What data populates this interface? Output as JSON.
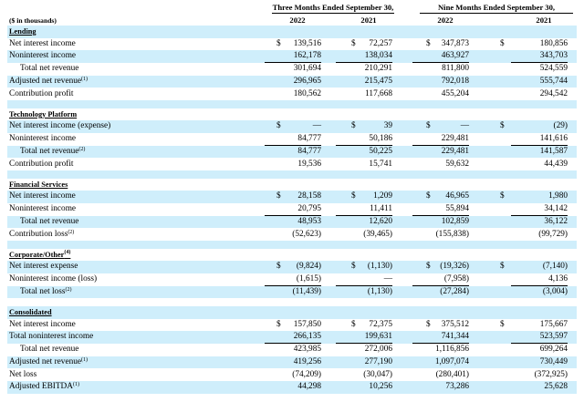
{
  "header": {
    "units": "($ in thousands)",
    "groups": [
      "Three Months Ended September 30,",
      "Nine Months Ended September 30,"
    ],
    "years": [
      "2022",
      "2021",
      "2022",
      "2021"
    ],
    "currency": "$"
  },
  "sections": [
    {
      "title": "Lending",
      "rows": [
        {
          "label": "Net interest income",
          "values": [
            "139,516",
            "72,257",
            "347,873",
            "180,856"
          ]
        },
        {
          "label": "Noninterest income",
          "values": [
            "162,178",
            "138,034",
            "463,927",
            "343,703"
          ]
        },
        {
          "label": "Total net revenue",
          "values": [
            "301,694",
            "210,291",
            "811,800",
            "524,559"
          ]
        },
        {
          "label": "Adjusted net revenue",
          "note": "(1)",
          "values": [
            "296,965",
            "215,475",
            "792,018",
            "555,744"
          ]
        },
        {
          "label": "Contribution profit",
          "values": [
            "180,562",
            "117,668",
            "455,204",
            "294,542"
          ]
        }
      ]
    },
    {
      "title": "Technology Platform",
      "rows": [
        {
          "label": "Net interest income (expense)",
          "values": [
            "—",
            "39",
            "—",
            "(29)"
          ]
        },
        {
          "label": "Noninterest income",
          "values": [
            "84,777",
            "50,186",
            "229,481",
            "141,616"
          ]
        },
        {
          "label": "Total net revenue",
          "note": "(2)",
          "values": [
            "84,777",
            "50,225",
            "229,481",
            "141,587"
          ]
        },
        {
          "label": "Contribution profit",
          "values": [
            "19,536",
            "15,741",
            "59,632",
            "44,439"
          ]
        }
      ]
    },
    {
      "title": "Financial Services",
      "rows": [
        {
          "label": "Net interest income",
          "values": [
            "28,158",
            "1,209",
            "46,965",
            "1,980"
          ]
        },
        {
          "label": "Noninterest income",
          "values": [
            "20,795",
            "11,411",
            "55,894",
            "34,142"
          ]
        },
        {
          "label": "Total net revenue",
          "values": [
            "48,953",
            "12,620",
            "102,859",
            "36,122"
          ]
        },
        {
          "label": "Contribution loss",
          "note": "(2)",
          "values": [
            "(52,623)",
            "(39,465)",
            "(155,838)",
            "(99,729)"
          ]
        }
      ]
    },
    {
      "title": "Corporate/Other",
      "note": "(4)",
      "rows": [
        {
          "label": "Net interest expense",
          "values": [
            "(9,824)",
            "(1,130)",
            "(19,326)",
            "(7,140)"
          ]
        },
        {
          "label": "Noninterest income (loss)",
          "values": [
            "(1,615)",
            "—",
            "(7,958)",
            "4,136"
          ]
        },
        {
          "label": "Total net loss",
          "note": "(2)",
          "values": [
            "(11,439)",
            "(1,130)",
            "(27,284)",
            "(3,004)"
          ]
        }
      ]
    },
    {
      "title": "Consolidated",
      "rows": [
        {
          "label": "Net interest income",
          "values": [
            "157,850",
            "72,375",
            "375,512",
            "175,667"
          ]
        },
        {
          "label": "Total noninterest income",
          "values": [
            "266,135",
            "199,631",
            "741,344",
            "523,597"
          ]
        },
        {
          "label": "Total net revenue",
          "values": [
            "423,985",
            "272,006",
            "1,116,856",
            "699,264"
          ]
        },
        {
          "label": "Adjusted net revenue",
          "note": "(1)",
          "values": [
            "419,256",
            "277,190",
            "1,097,074",
            "730,449"
          ]
        },
        {
          "label": "Net loss",
          "values": [
            "(74,209)",
            "(30,047)",
            "(280,401)",
            "(372,925)"
          ]
        },
        {
          "label": "Adjusted EBITDA",
          "note": "(1)",
          "values": [
            "44,298",
            "10,256",
            "73,286",
            "25,628"
          ]
        }
      ]
    }
  ]
}
